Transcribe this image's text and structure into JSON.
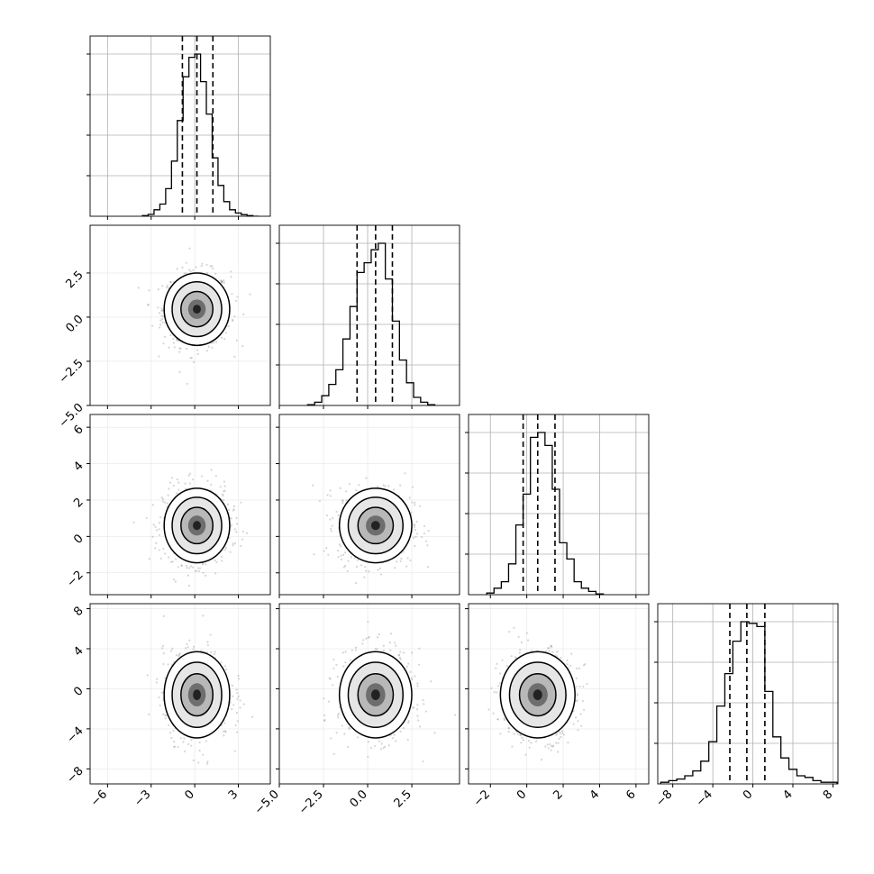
{
  "chart_data": {
    "type": "corner",
    "description_free": true,
    "params": [
      {
        "index": 0,
        "range": [
          -7.2,
          5.2
        ],
        "ticks": [
          -6,
          -3,
          0,
          3
        ],
        "tick_labels": [
          "−6",
          "−3",
          "0",
          "3"
        ],
        "quantiles": [
          -0.85,
          0.15,
          1.25
        ]
      },
      {
        "index": 1,
        "range": [
          -5.0,
          5.2
        ],
        "ticks": [
          -5.0,
          -2.5,
          0.0,
          2.5
        ],
        "tick_labels": [
          "−5.0",
          "−2.5",
          "0.0",
          "2.5"
        ],
        "quantiles": [
          -0.6,
          0.45,
          1.4
        ]
      },
      {
        "index": 2,
        "range": [
          -3.2,
          6.7
        ],
        "ticks": [
          -2,
          0,
          2,
          4,
          6
        ],
        "tick_labels": [
          "−2",
          "0",
          "2",
          "4",
          "6"
        ],
        "quantiles": [
          -0.2,
          0.6,
          1.55
        ]
      },
      {
        "index": 3,
        "range": [
          -9.5,
          8.5
        ],
        "ticks": [
          -8,
          -4,
          0,
          4,
          8
        ],
        "tick_labels": [
          "−8",
          "−4",
          "0",
          "4",
          "8"
        ],
        "quantiles": [
          -2.3,
          -0.6,
          1.2
        ]
      }
    ],
    "histograms": [
      {
        "param": 0,
        "edges": [
          -3.6,
          -3.2,
          -2.8,
          -2.4,
          -2.0,
          -1.6,
          -1.2,
          -0.8,
          -0.4,
          0.0,
          0.4,
          0.8,
          1.2,
          1.6,
          2.0,
          2.4,
          2.8,
          3.2,
          3.6,
          4.0,
          4.4
        ],
        "counts": [
          0.004,
          0.012,
          0.04,
          0.075,
          0.17,
          0.34,
          0.59,
          0.86,
          0.98,
          1.0,
          0.83,
          0.63,
          0.36,
          0.19,
          0.09,
          0.04,
          0.02,
          0.01,
          0.004,
          0.0
        ]
      },
      {
        "param": 1,
        "edges": [
          -3.4,
          -3.0,
          -2.6,
          -2.2,
          -1.8,
          -1.4,
          -1.0,
          -0.6,
          -0.2,
          0.2,
          0.6,
          1.0,
          1.4,
          1.8,
          2.2,
          2.6,
          3.0,
          3.4,
          3.8
        ],
        "counts": [
          0.005,
          0.02,
          0.06,
          0.13,
          0.22,
          0.41,
          0.61,
          0.82,
          0.88,
          0.96,
          1.0,
          0.78,
          0.52,
          0.28,
          0.14,
          0.05,
          0.02,
          0.005
        ]
      },
      {
        "param": 2,
        "edges": [
          -2.2,
          -1.8,
          -1.4,
          -1.0,
          -0.6,
          -0.2,
          0.2,
          0.6,
          1.0,
          1.4,
          1.8,
          2.2,
          2.6,
          3.0,
          3.4,
          3.8,
          4.2
        ],
        "counts": [
          0.01,
          0.04,
          0.08,
          0.19,
          0.43,
          0.62,
          0.97,
          1.0,
          0.92,
          0.65,
          0.32,
          0.22,
          0.08,
          0.04,
          0.02,
          0.005
        ]
      },
      {
        "param": 3,
        "edges": [
          -9.2,
          -8.4,
          -7.6,
          -6.8,
          -6.0,
          -5.2,
          -4.4,
          -3.6,
          -2.8,
          -2.0,
          -1.2,
          -0.4,
          0.4,
          1.2,
          2.0,
          2.8,
          3.6,
          4.4,
          5.2,
          6.0,
          6.8,
          7.6,
          8.4
        ],
        "counts": [
          0.01,
          0.02,
          0.03,
          0.05,
          0.08,
          0.14,
          0.26,
          0.48,
          0.68,
          0.88,
          1.0,
          0.99,
          0.97,
          0.57,
          0.29,
          0.16,
          0.09,
          0.05,
          0.04,
          0.02,
          0.01,
          0.01
        ]
      }
    ],
    "pairs": [
      {
        "x": 0,
        "y": 1,
        "center": [
          0.15,
          0.45
        ],
        "sigma": [
          1.1,
          1.0
        ]
      },
      {
        "x": 0,
        "y": 2,
        "center": [
          0.15,
          0.6
        ],
        "sigma": [
          1.1,
          1.0
        ]
      },
      {
        "x": 1,
        "y": 2,
        "center": [
          0.45,
          0.6
        ],
        "sigma": [
          1.0,
          1.0
        ]
      },
      {
        "x": 0,
        "y": 3,
        "center": [
          0.15,
          -0.6
        ],
        "sigma": [
          1.1,
          2.1
        ]
      },
      {
        "x": 1,
        "y": 3,
        "center": [
          0.45,
          -0.6
        ],
        "sigma": [
          1.0,
          2.1
        ]
      },
      {
        "x": 2,
        "y": 3,
        "center": [
          0.6,
          -0.6
        ],
        "sigma": [
          1.0,
          2.1
        ]
      }
    ],
    "grid": true,
    "colors": {
      "line": "#000000",
      "grid": "#b0b0b0",
      "points": "#000000"
    }
  }
}
